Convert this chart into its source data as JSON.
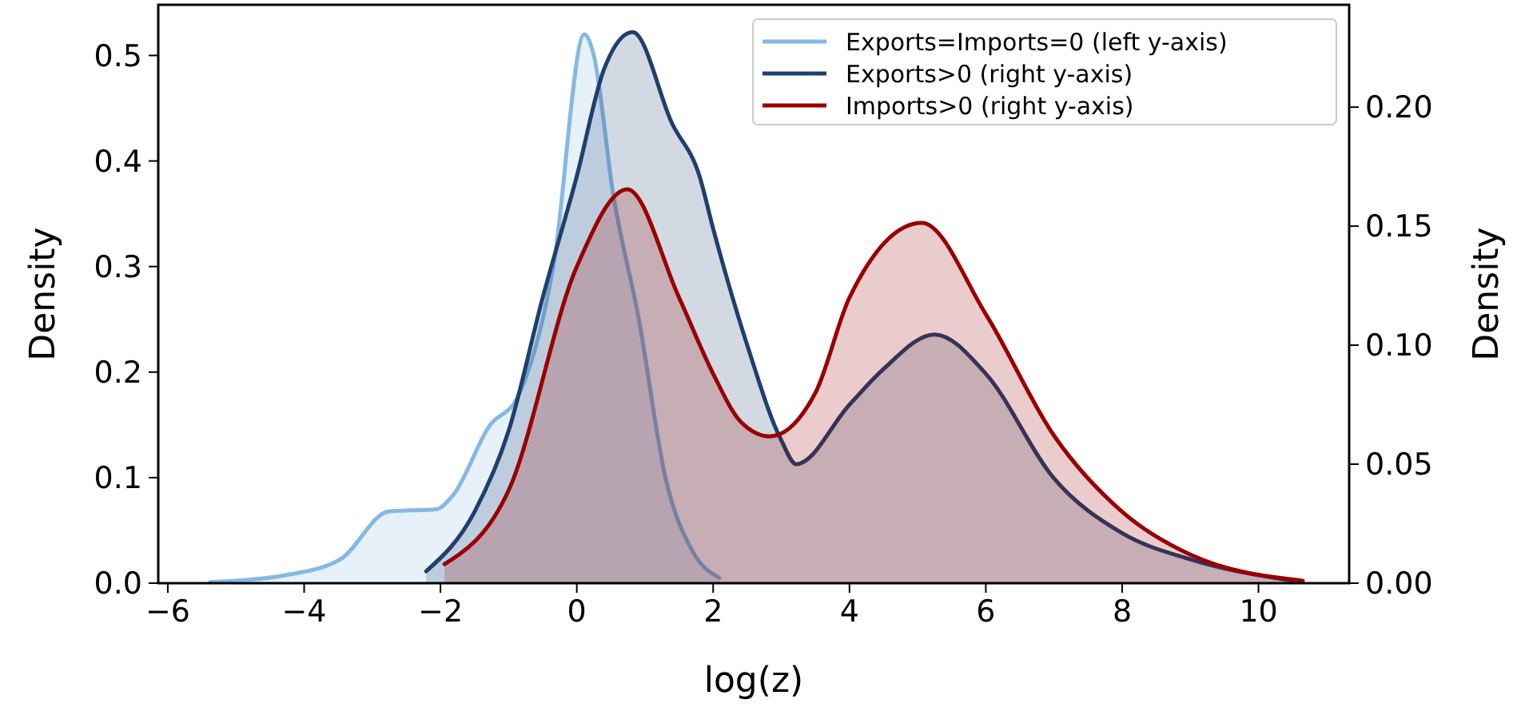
{
  "chart_data": {
    "type": "area",
    "xlabel": "log(z)",
    "ylabel": "Density",
    "y2label": "Density",
    "xlim": [
      -6.14,
      11.33
    ],
    "xticks": [
      -6,
      -4,
      -2,
      0,
      2,
      4,
      6,
      8,
      10
    ],
    "ylim": [
      0,
      0.548
    ],
    "yticks": [
      {
        "value": 0,
        "label": "0.0"
      },
      0.1,
      0.2,
      0.3,
      0.4,
      0.5
    ],
    "y2lim": [
      0,
      0.243
    ],
    "y2ticks": [
      {
        "value": 0,
        "label": "0.00"
      },
      {
        "value": 0.05,
        "label": "0.05"
      },
      {
        "value": 0.1,
        "label": "0.10"
      },
      {
        "value": 0.15,
        "label": "0.15"
      },
      {
        "value": 0.2,
        "label": "0.20"
      }
    ],
    "legend": "top right",
    "grid": false,
    "series": [
      {
        "name": "Exports=Imports=0 (left y-axis)",
        "color": "#85b9e3",
        "x": [
          -5.38,
          -4.24,
          -3.46,
          -2.76,
          -2.06,
          -1.82,
          -1.27,
          -0.88,
          -0.34,
          0.11,
          0.25,
          0.53,
          0.91,
          1.3,
          1.7,
          2.09
        ],
        "values": [
          0.001,
          0.008,
          0.023,
          0.068,
          0.07,
          0.083,
          0.15,
          0.175,
          0.302,
          0.52,
          0.5,
          0.37,
          0.25,
          0.1,
          0.03,
          0.005
        ]
      },
      {
        "name": "Exports>0 (right y-axis)",
        "color": "#1f3f6e",
        "axis": "y2",
        "x": [
          -2.21,
          -1.5,
          -1,
          -0.5,
          0,
          0.4,
          0.82,
          1.4,
          1.8,
          2,
          2.5,
          3,
          3.22,
          4,
          4.5,
          5.25,
          6,
          7,
          8,
          9,
          10.5
        ],
        "values": [
          0.005,
          0.03,
          0.064,
          0.12,
          0.171,
          0.216,
          0.2315,
          0.193,
          0.171,
          0.149,
          0.1,
          0.06,
          0.05,
          0.075,
          0.09,
          0.1045,
          0.088,
          0.044,
          0.021,
          0.01,
          0.001
        ]
      },
      {
        "name": "Imports>0 (right y-axis)",
        "color": "#990000",
        "axis": "y2",
        "x": [
          -1.94,
          -1,
          0,
          0.74,
          1.5,
          2,
          2.4,
          2.83,
          3.5,
          4,
          5.06,
          6,
          7,
          8,
          9,
          10.65
        ],
        "values": [
          0.008,
          0.039,
          0.133,
          0.1655,
          0.12,
          0.088,
          0.068,
          0.0617,
          0.08,
          0.12,
          0.1514,
          0.113,
          0.062,
          0.03,
          0.012,
          0.001
        ]
      }
    ]
  }
}
